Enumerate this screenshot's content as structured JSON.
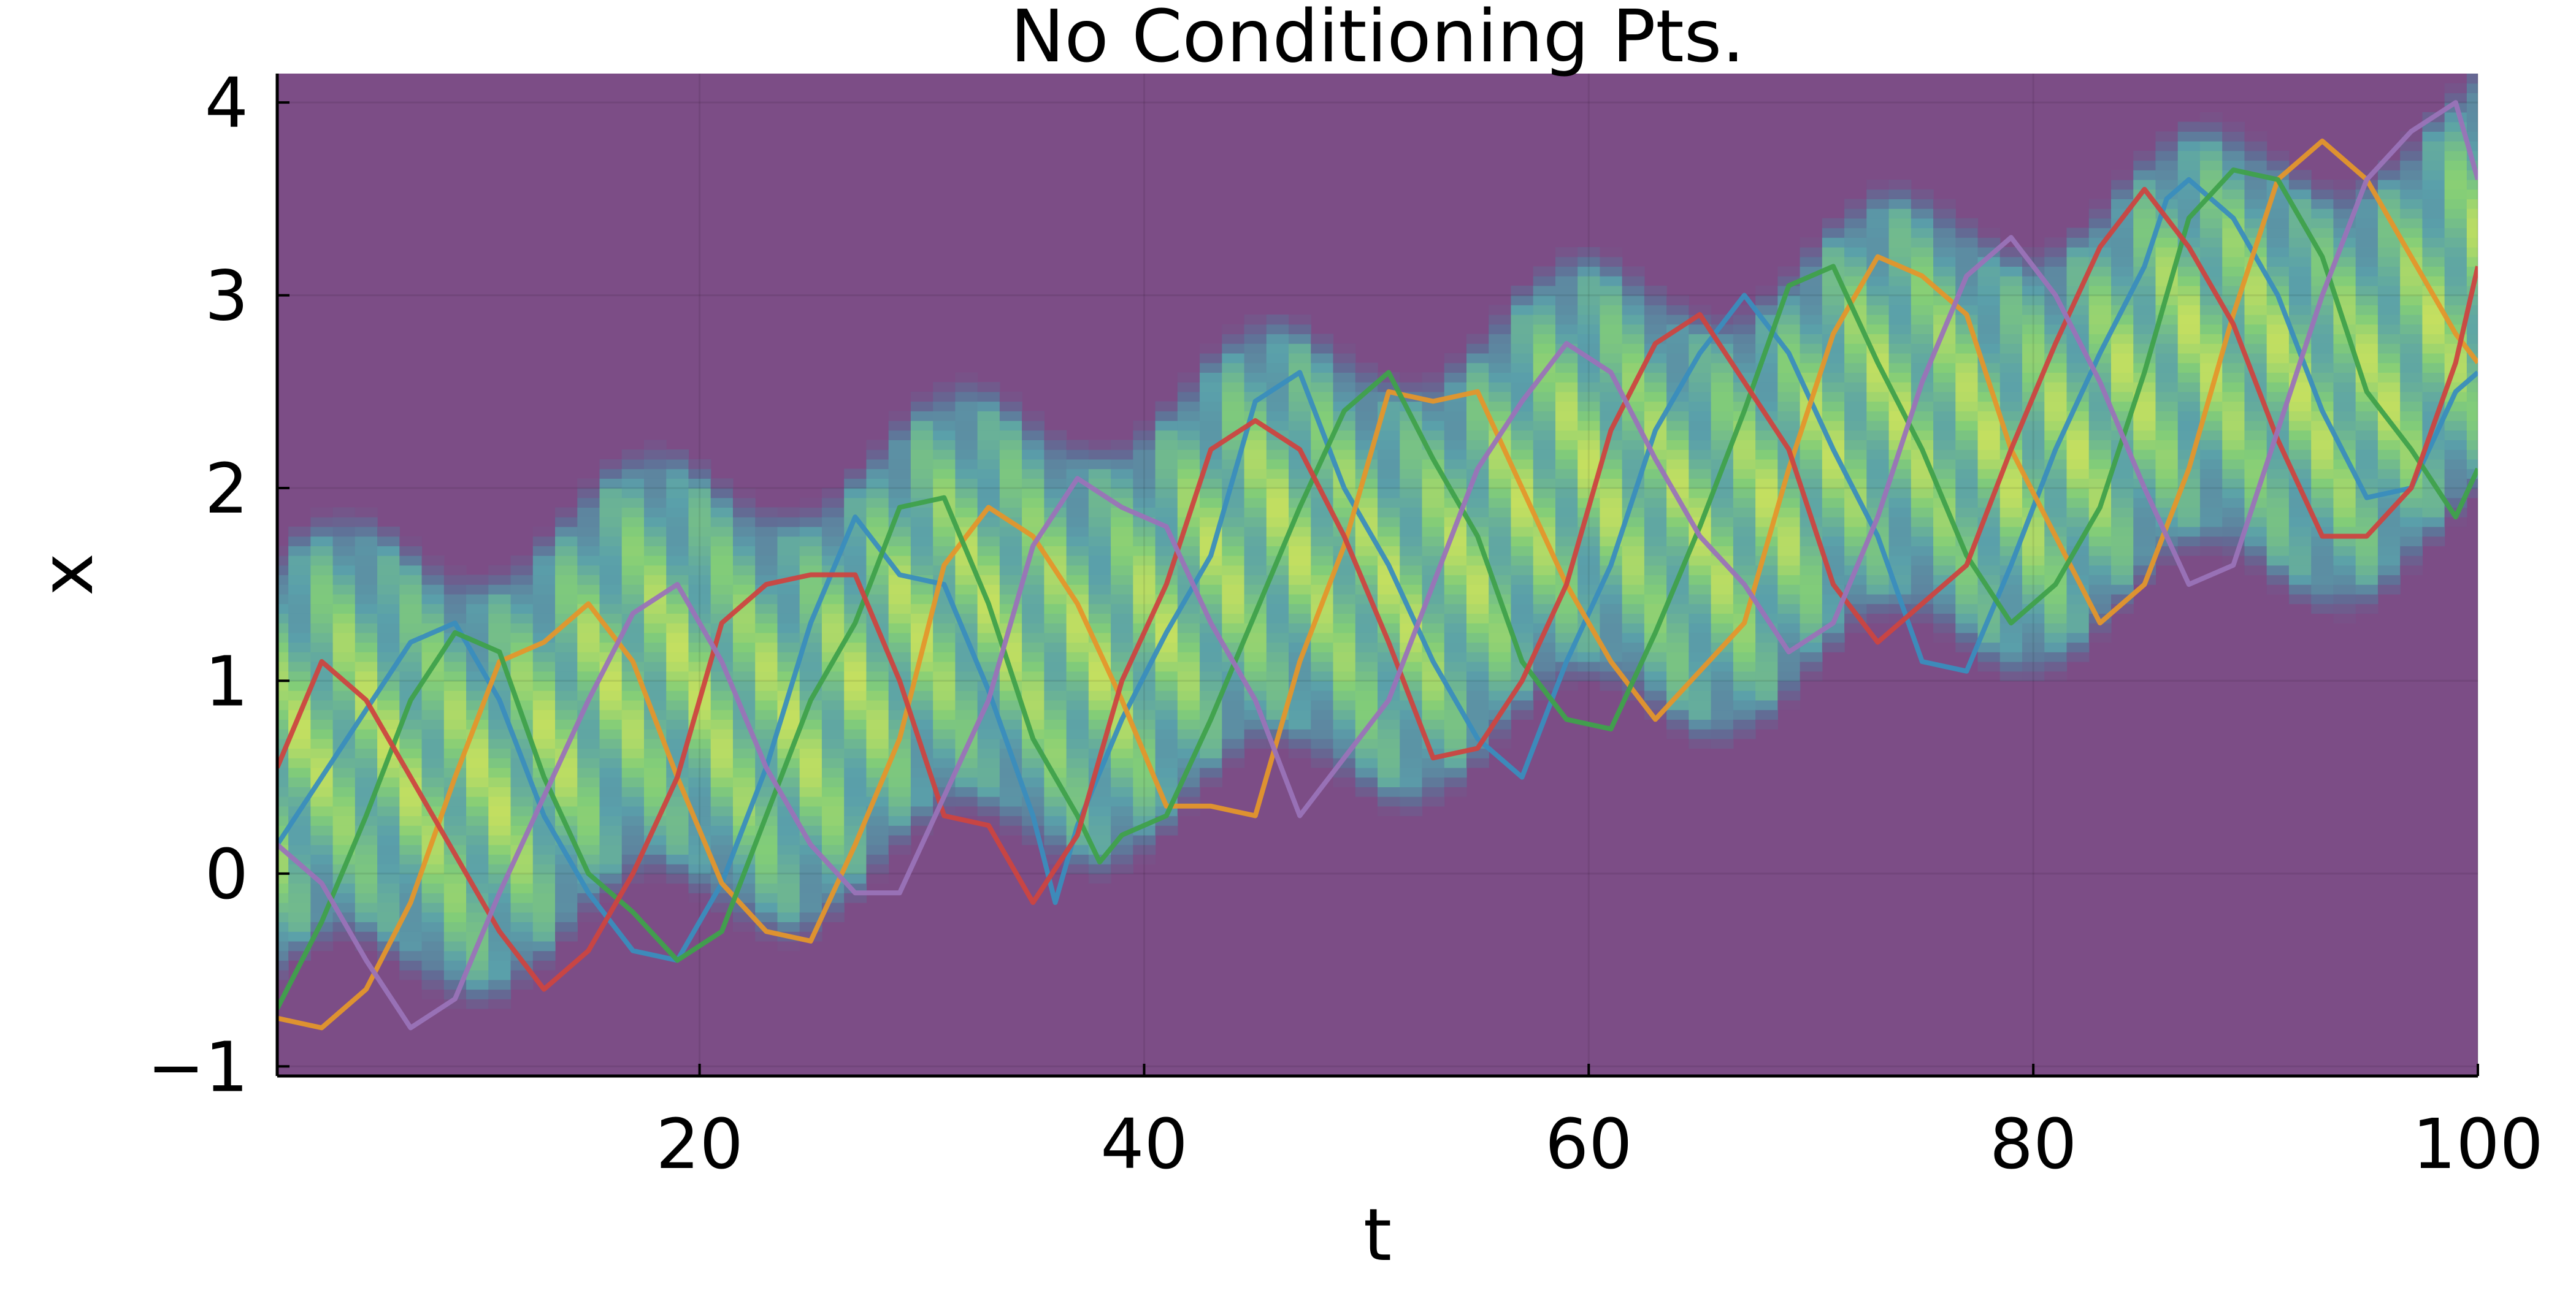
{
  "chart_data": {
    "type": "line",
    "title": "No Conditioning Pts.",
    "xlabel": "t",
    "ylabel": "x",
    "xlim": [
      1,
      100
    ],
    "ylim": [
      -1.05,
      4.15
    ],
    "grid": true,
    "legend": "none",
    "xticks": [
      20,
      40,
      60,
      80,
      100
    ],
    "yticks": [
      -1,
      0,
      1,
      2,
      3,
      4
    ],
    "xtick_labels": [
      "20",
      "40",
      "60",
      "80",
      "100"
    ],
    "ytick_labels": [
      "−1",
      "0",
      "1",
      "2",
      "3",
      "4"
    ],
    "background_density": {
      "description_colormap": "viridis",
      "band_center_start": 0.45,
      "band_center_end": 2.85,
      "band_halfwidth": 1.15,
      "outside_color": "#7c4d86"
    },
    "colors": [
      "#3a8dbd",
      "#e4962b",
      "#3fa14b",
      "#cc4440",
      "#9a73b8"
    ],
    "series": [
      {
        "color": "#3a8dbd",
        "x": [
          1,
          3,
          5,
          7,
          9,
          11,
          13,
          15,
          17,
          19,
          21,
          23,
          25,
          27,
          29,
          31,
          33,
          35,
          36,
          37,
          39,
          41,
          43,
          45,
          47,
          49,
          51,
          53,
          55,
          57,
          59,
          61,
          63,
          65,
          67,
          69,
          71,
          73,
          75,
          77,
          79,
          81,
          83,
          85,
          86,
          87,
          89,
          91,
          93,
          95,
          97,
          99,
          100
        ],
        "values": [
          0.15,
          0.5,
          0.85,
          1.2,
          1.3,
          0.9,
          0.3,
          -0.1,
          -0.4,
          -0.45,
          -0.05,
          0.55,
          1.3,
          1.85,
          1.55,
          1.5,
          0.95,
          0.3,
          -0.15,
          0.25,
          0.8,
          1.25,
          1.65,
          2.45,
          2.6,
          2.0,
          1.6,
          1.1,
          0.7,
          0.5,
          1.1,
          1.6,
          2.3,
          2.7,
          3.0,
          2.7,
          2.2,
          1.75,
          1.1,
          1.05,
          1.6,
          2.2,
          2.7,
          3.15,
          3.5,
          3.6,
          3.4,
          3.0,
          2.4,
          1.95,
          2.0,
          2.5,
          2.6
        ]
      },
      {
        "color": "#e4962b",
        "x": [
          1,
          3,
          5,
          7,
          9,
          11,
          13,
          15,
          17,
          19,
          21,
          23,
          25,
          27,
          29,
          31,
          33,
          35,
          37,
          39,
          41,
          43,
          45,
          47,
          49,
          51,
          53,
          55,
          57,
          59,
          61,
          63,
          65,
          67,
          69,
          71,
          73,
          75,
          77,
          79,
          81,
          83,
          85,
          87,
          89,
          91,
          93,
          95,
          97,
          99,
          100
        ],
        "values": [
          -0.75,
          -0.8,
          -0.6,
          -0.15,
          0.5,
          1.1,
          1.2,
          1.4,
          1.1,
          0.5,
          -0.05,
          -0.3,
          -0.35,
          0.15,
          0.7,
          1.6,
          1.9,
          1.75,
          1.4,
          0.9,
          0.35,
          0.35,
          0.3,
          1.1,
          1.7,
          2.5,
          2.45,
          2.5,
          2.0,
          1.5,
          1.1,
          0.8,
          1.05,
          1.3,
          2.1,
          2.8,
          3.2,
          3.1,
          2.9,
          2.2,
          1.75,
          1.3,
          1.5,
          2.1,
          2.9,
          3.6,
          3.8,
          3.6,
          3.2,
          2.8,
          2.65
        ]
      },
      {
        "color": "#3fa14b",
        "x": [
          1,
          3,
          5,
          7,
          9,
          11,
          13,
          15,
          17,
          19,
          21,
          23,
          25,
          27,
          29,
          31,
          33,
          35,
          37,
          38,
          39,
          41,
          43,
          45,
          47,
          49,
          51,
          53,
          55,
          57,
          59,
          61,
          63,
          65,
          67,
          69,
          71,
          73,
          75,
          77,
          79,
          81,
          83,
          85,
          87,
          89,
          91,
          93,
          95,
          97,
          99,
          100
        ],
        "values": [
          -0.7,
          -0.25,
          0.3,
          0.9,
          1.25,
          1.15,
          0.5,
          0.0,
          -0.2,
          -0.45,
          -0.3,
          0.3,
          0.9,
          1.3,
          1.9,
          1.95,
          1.4,
          0.7,
          0.3,
          0.06,
          0.2,
          0.3,
          0.8,
          1.35,
          1.9,
          2.4,
          2.6,
          2.15,
          1.75,
          1.1,
          0.8,
          0.75,
          1.25,
          1.8,
          2.4,
          3.05,
          3.15,
          2.65,
          2.2,
          1.65,
          1.3,
          1.5,
          1.9,
          2.6,
          3.4,
          3.65,
          3.6,
          3.2,
          2.5,
          2.2,
          1.85,
          2.1
        ]
      },
      {
        "color": "#cc4440",
        "x": [
          1,
          3,
          5,
          7,
          9,
          11,
          13,
          15,
          17,
          19,
          21,
          23,
          25,
          27,
          29,
          31,
          33,
          35,
          37,
          39,
          41,
          43,
          45,
          47,
          49,
          51,
          53,
          55,
          57,
          59,
          61,
          63,
          65,
          67,
          69,
          71,
          73,
          75,
          77,
          79,
          81,
          83,
          85,
          87,
          89,
          91,
          93,
          95,
          97,
          99,
          100
        ],
        "values": [
          0.55,
          1.1,
          0.9,
          0.5,
          0.1,
          -0.3,
          -0.6,
          -0.4,
          0.0,
          0.5,
          1.3,
          1.5,
          1.55,
          1.55,
          1.0,
          0.3,
          0.25,
          -0.15,
          0.2,
          1.0,
          1.5,
          2.2,
          2.35,
          2.2,
          1.75,
          1.2,
          0.6,
          0.65,
          1.0,
          1.5,
          2.3,
          2.75,
          2.9,
          2.55,
          2.2,
          1.5,
          1.2,
          1.4,
          1.6,
          2.2,
          2.75,
          3.25,
          3.55,
          3.25,
          2.85,
          2.25,
          1.75,
          1.75,
          2.0,
          2.65,
          3.15
        ]
      },
      {
        "color": "#9a73b8",
        "x": [
          1,
          3,
          5,
          7,
          9,
          11,
          13,
          15,
          17,
          19,
          21,
          23,
          25,
          27,
          29,
          31,
          33,
          35,
          37,
          39,
          41,
          43,
          45,
          47,
          49,
          51,
          53,
          55,
          57,
          59,
          61,
          63,
          65,
          67,
          69,
          71,
          73,
          75,
          77,
          79,
          81,
          83,
          85,
          87,
          89,
          91,
          93,
          95,
          97,
          99,
          100
        ],
        "values": [
          0.15,
          -0.05,
          -0.45,
          -0.8,
          -0.65,
          -0.1,
          0.4,
          0.9,
          1.35,
          1.5,
          1.1,
          0.55,
          0.15,
          -0.1,
          -0.1,
          0.4,
          0.9,
          1.7,
          2.05,
          1.9,
          1.8,
          1.3,
          0.9,
          0.3,
          0.6,
          0.9,
          1.5,
          2.1,
          2.45,
          2.75,
          2.6,
          2.15,
          1.75,
          1.5,
          1.15,
          1.3,
          1.85,
          2.55,
          3.1,
          3.3,
          3.0,
          2.55,
          2.0,
          1.5,
          1.6,
          2.3,
          3.0,
          3.6,
          3.85,
          4.0,
          3.6
        ]
      }
    ]
  }
}
